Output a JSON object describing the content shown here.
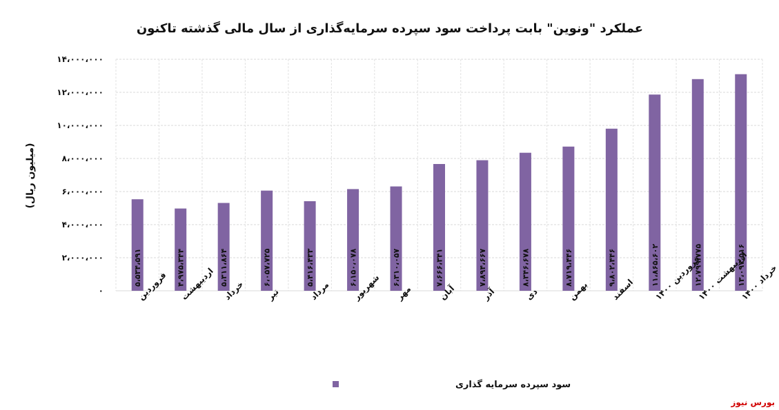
{
  "chart_data": {
    "type": "bar",
    "title": "عملکرد \"ونوین\" بابت پرداخت سود سپرده سرمایه‌گذاری از سال مالی گذشته تاکنون",
    "ylabel": "(میلیون ریال)",
    "ylim": [
      0,
      14000000
    ],
    "yticks": [
      "۰",
      "۲،۰۰۰،۰۰۰",
      "۴،۰۰۰،۰۰۰",
      "۶،۰۰۰،۰۰۰",
      "۸،۰۰۰،۰۰۰",
      "۱۰،۰۰۰،۰۰۰",
      "۱۲،۰۰۰،۰۰۰",
      "۱۴،۰۰۰،۰۰۰"
    ],
    "grid": true,
    "legend_position": "bottom",
    "bar_color": "#8064a2",
    "categories": [
      "فروردین",
      "اردیبهشت",
      "خرداد",
      "تیر",
      "مرداد",
      "شهریور",
      "مهر",
      "آبان",
      "آذر",
      "دی",
      "بهمن",
      "اسفند",
      "فروردین ۱۴۰۰",
      "اردیبهشت ۱۴۰۰",
      "خرداد ۱۴۰۰"
    ],
    "series": [
      {
        "name": "سود سپرده سرمایه گذاری",
        "values": [
          5534591,
          4975344,
          5311864,
          6057725,
          5416433,
          6150078,
          6310057,
          7666341,
          7894667,
          8346678,
          8719446,
          9802446,
          11865602,
          12799775,
          13097516
        ],
        "labels": [
          "۵،۵۳۴،۵۹۱",
          "۴،۹۷۵،۳۴۴",
          "۵،۳۱۱،۸۶۴",
          "۶،۰۵۷،۷۲۵",
          "۵،۴۱۶،۴۳۳",
          "۶،۱۵۰،۰۷۸",
          "۶،۳۱۰،۰۵۷",
          "۷،۶۶۶،۳۴۱",
          "۷،۸۹۴،۶۶۷",
          "۸،۳۴۶،۶۷۸",
          "۸،۷۱۹،۴۴۶",
          "۹،۸۰۲،۴۴۶",
          "۱۱،۸۶۵،۶۰۲",
          "۱۲،۷۹۹،۷۷۵",
          "۱۳،۰۹۷،۵۱۶"
        ]
      }
    ]
  },
  "source_label": "بورس نیوز"
}
